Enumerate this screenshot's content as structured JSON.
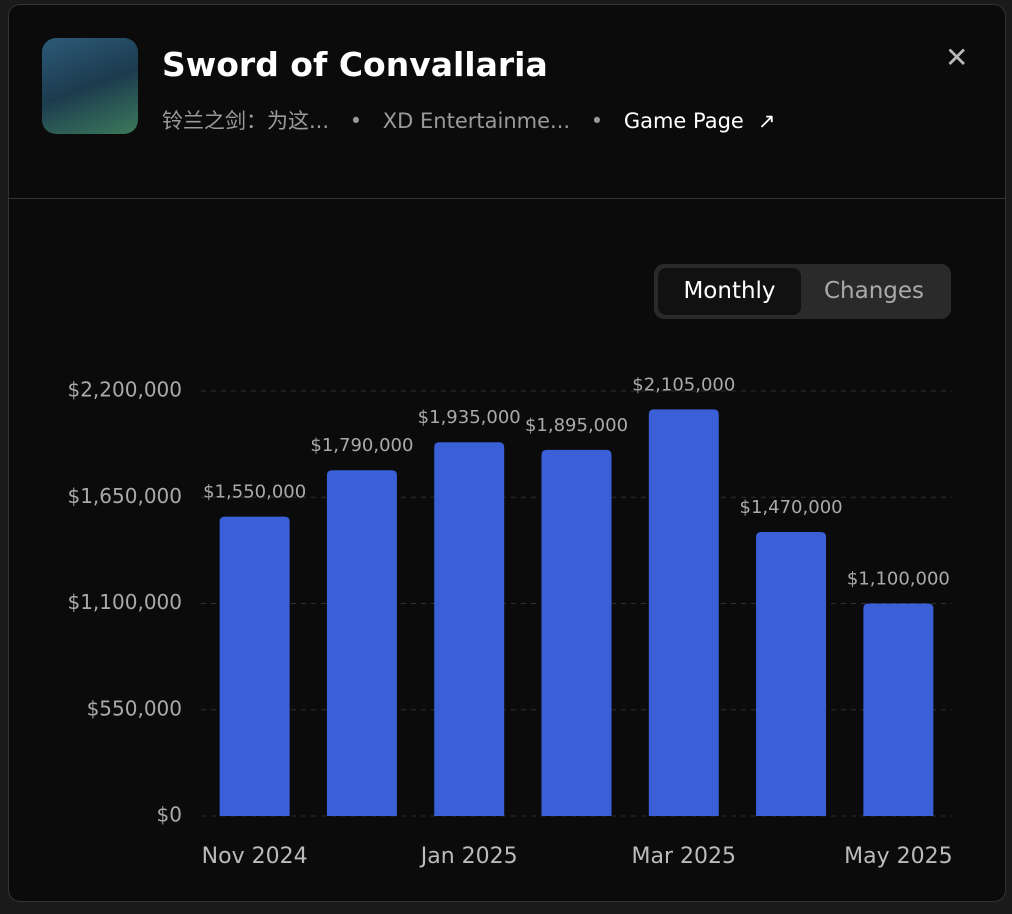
{
  "header": {
    "title": "Sword of Convallaria",
    "alt_name": "铃兰之剑：为这...",
    "publisher": "XD Entertainme...",
    "link": "Game Page"
  },
  "tabs": [
    "Monthly",
    "Changes"
  ],
  "chart_data": {
    "type": "bar",
    "categories": [
      "Nov 2024",
      null,
      "Jan 2025",
      null,
      "Mar 2025",
      null,
      "May 2025"
    ],
    "values": [
      1550000,
      1790000,
      1935000,
      1895000,
      2105000,
      1470000,
      1100000
    ],
    "value_labels": [
      "$1,550,000",
      "$1,790,000",
      "$1,935,000",
      "$1,895,000",
      "$2,105,000",
      "$1,470,000",
      "$1,100,000"
    ],
    "color": "#3a5fd6",
    "ylim": [
      0,
      2200000
    ],
    "yticks": [
      {
        "value": 0,
        "label": "$0"
      },
      {
        "value": 550000,
        "label": "$550,000"
      },
      {
        "value": 1100000,
        "label": "$1,100,000"
      },
      {
        "value": 1650000,
        "label": "$1,650,000"
      },
      {
        "value": 2200000,
        "label": "$2,200,000"
      }
    ],
    "grid": true
  }
}
